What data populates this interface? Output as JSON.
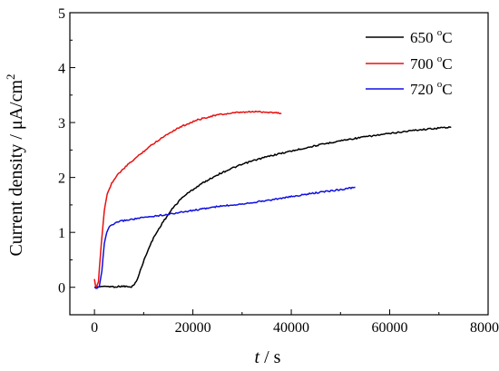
{
  "chart_data": {
    "type": "line",
    "xlabel": {
      "var": "t",
      "unit": " / s"
    },
    "ylabel": {
      "main": "Current density / μA/cm",
      "sup": "2"
    },
    "xlim": [
      -5000,
      80000
    ],
    "ylim": [
      -0.5,
      5
    ],
    "xticks": [
      0,
      20000,
      40000,
      60000,
      80000
    ],
    "yticks": [
      0,
      1,
      2,
      3,
      4,
      5
    ],
    "xtick_labels": [
      "0",
      "20000",
      "40000",
      "60000",
      "80000"
    ],
    "ytick_labels": [
      "0",
      "1",
      "2",
      "3",
      "4",
      "5"
    ],
    "legend_position": "top-right",
    "grid": false,
    "series": [
      {
        "name": "650 °C",
        "label_main": "650 ",
        "label_sup": "o",
        "label_unit": "C",
        "color": "#000000",
        "x": [
          0,
          2000,
          4000,
          6000,
          7500,
          8500,
          9500,
          10500,
          12000,
          14000,
          16000,
          18000,
          20000,
          22000,
          25000,
          28000,
          32000,
          36000,
          40000,
          45000,
          50000,
          55000,
          60000,
          65000,
          70000,
          72500
        ],
        "y": [
          0.0,
          0.02,
          0.01,
          0.02,
          0.0,
          0.1,
          0.35,
          0.6,
          0.9,
          1.2,
          1.45,
          1.65,
          1.78,
          1.9,
          2.05,
          2.17,
          2.3,
          2.4,
          2.48,
          2.58,
          2.67,
          2.74,
          2.8,
          2.86,
          2.9,
          2.92
        ]
      },
      {
        "name": "700 °C",
        "label_main": "700 ",
        "label_sup": "o",
        "label_unit": "C",
        "color": "#e81010",
        "x": [
          0,
          300,
          800,
          1400,
          2000,
          2600,
          3500,
          5000,
          7000,
          9000,
          11000,
          13000,
          15000,
          17000,
          19000,
          21000,
          23000,
          25000,
          27000,
          29000,
          31000,
          33000,
          35000,
          36500,
          38000
        ],
        "y": [
          0.15,
          -0.02,
          0.1,
          0.8,
          1.4,
          1.7,
          1.9,
          2.08,
          2.25,
          2.4,
          2.55,
          2.68,
          2.8,
          2.9,
          2.98,
          3.05,
          3.1,
          3.14,
          3.16,
          3.18,
          3.19,
          3.2,
          3.19,
          3.18,
          3.17
        ]
      },
      {
        "name": "720 °C",
        "label_main": "720 ",
        "label_sup": "o",
        "label_unit": "C",
        "color": "#1010e0",
        "x": [
          0,
          500,
          1000,
          1500,
          2000,
          2500,
          3000,
          4000,
          5000,
          7000,
          10000,
          15000,
          20000,
          25000,
          30000,
          35000,
          40000,
          45000,
          50000,
          53000
        ],
        "y": [
          0.0,
          -0.02,
          0.02,
          0.3,
          0.8,
          1.0,
          1.1,
          1.15,
          1.2,
          1.23,
          1.27,
          1.33,
          1.4,
          1.47,
          1.52,
          1.58,
          1.65,
          1.72,
          1.78,
          1.82
        ]
      }
    ]
  }
}
